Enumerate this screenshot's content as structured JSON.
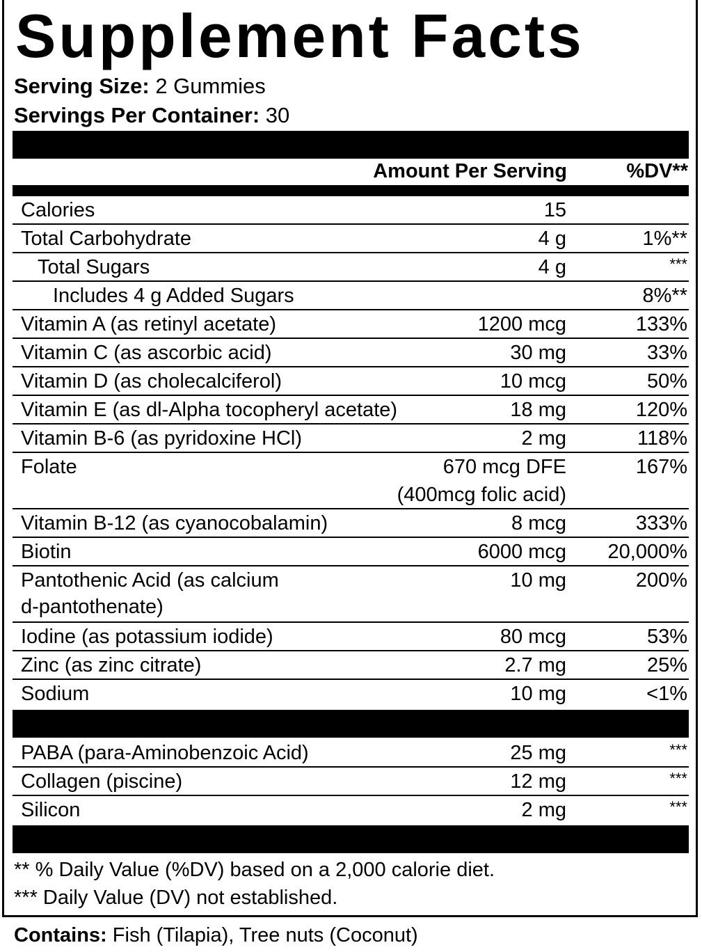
{
  "title": "Supplement Facts",
  "serving_size_label": "Serving Size:",
  "serving_size_value": "2 Gummies",
  "servings_label": "Servings Per Container:",
  "servings_value": "30",
  "header": {
    "amount": "Amount Per Serving",
    "dv": "%DV**"
  },
  "rows": [
    {
      "name": "Calories",
      "amount": "15",
      "dv": ""
    },
    {
      "name": "Total Carbohydrate",
      "amount": "4 g",
      "dv": "1%**"
    },
    {
      "name": "Total Sugars",
      "amount": "4 g",
      "dv": "***"
    },
    {
      "name": "Includes 4 g Added Sugars",
      "amount": "",
      "dv": "8%**"
    },
    {
      "name": "Vitamin A (as retinyl acetate)",
      "amount": "1200 mcg",
      "dv": "133%"
    },
    {
      "name": "Vitamin C (as ascorbic acid)",
      "amount": "30 mg",
      "dv": "33%"
    },
    {
      "name": "Vitamin D (as cholecalciferol)",
      "amount": "10 mcg",
      "dv": "50%"
    },
    {
      "name": "Vitamin E (as dl-Alpha tocopheryl acetate)",
      "amount": "18 mg",
      "dv": "120%"
    },
    {
      "name": "Vitamin B-6 (as pyridoxine HCl)",
      "amount": "2 mg",
      "dv": "118%"
    },
    {
      "name": "Folate",
      "amount": "670 mcg DFE",
      "amount2": "(400mcg folic acid)",
      "dv": "167%"
    },
    {
      "name": "Vitamin B-12 (as cyanocobalamin)",
      "amount": "8 mcg",
      "dv": "333%"
    },
    {
      "name": "Biotin",
      "amount": "6000 mcg",
      "dv": "20,000%"
    },
    {
      "name": "Pantothenic Acid (as calcium",
      "name2": "d-pantothenate)",
      "amount": "10 mg",
      "dv": "200%"
    },
    {
      "name": "Iodine (as potassium iodide)",
      "amount": "80 mcg",
      "dv": "53%"
    },
    {
      "name": "Zinc (as zinc citrate)",
      "amount": "2.7 mg",
      "dv": "25%"
    },
    {
      "name": "Sodium",
      "amount": "10 mg",
      "dv": "<1%"
    }
  ],
  "other_rows": [
    {
      "name": "PABA (para-Aminobenzoic Acid)",
      "amount": "25 mg",
      "dv": "***"
    },
    {
      "name": "Collagen (piscine)",
      "amount": "12 mg",
      "dv": "***"
    },
    {
      "name": "Silicon",
      "amount": "2 mg",
      "dv": "***"
    }
  ],
  "footnote1": "** % Daily Value (%DV) based on a 2,000 calorie diet.",
  "footnote2": "*** Daily Value (DV) not established.",
  "contains_label": "Contains:",
  "contains_value": "Fish (Tilapia), Tree nuts (Coconut)"
}
